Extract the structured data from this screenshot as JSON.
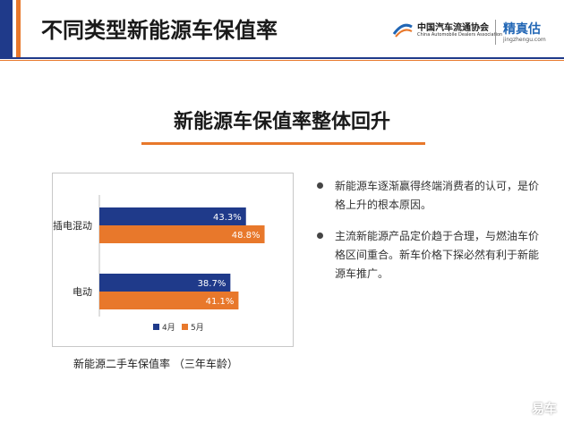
{
  "page": {
    "title": "不同类型新能源车保值率",
    "logo_cn": "中国汽车流通协会",
    "logo_en": "China Automobile Dealers Association",
    "brand_cn": "精真估",
    "brand_en": "jingzhengu.com",
    "section_title": "新能源车保值率整体回升",
    "chart_caption": "新能源二手车保值率 （三年车龄）",
    "watermark": "易车"
  },
  "colors": {
    "series_april": "#1f3a8a",
    "series_may": "#e8782b",
    "accent_blue": "#1f3a8a",
    "accent_orange": "#e8782b"
  },
  "bullets": [
    "新能源车逐渐赢得终端消费者的认可，是价格上升的根本原因。",
    "主流新能源产品定价趋于合理，与燃油车价格区间重合。新车价格下探必然有利于新能源车推广。"
  ],
  "chart_data": {
    "type": "bar",
    "orientation": "horizontal",
    "categories": [
      "插电混动",
      "电动"
    ],
    "series": [
      {
        "name": "4月",
        "values": [
          43.3,
          38.7
        ],
        "labels": [
          "43.3%",
          "38.7%"
        ]
      },
      {
        "name": "5月",
        "values": [
          48.8,
          41.1
        ],
        "labels": [
          "48.8%",
          "41.1%"
        ]
      }
    ],
    "xlim": [
      0,
      55
    ],
    "grid": false,
    "legend": "bottom"
  }
}
